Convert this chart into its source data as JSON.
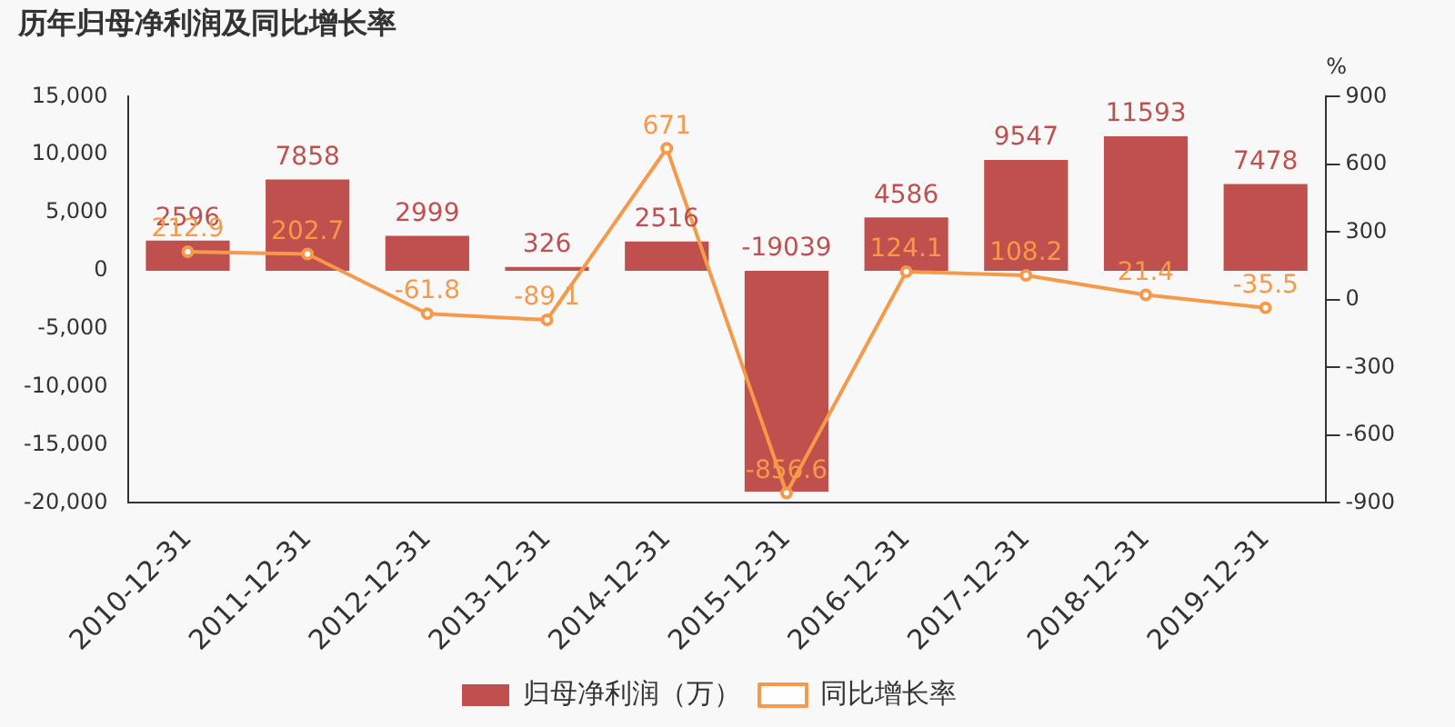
{
  "chart_data": {
    "type": "bar",
    "title": "历年归母净利润及同比增长率",
    "y2label": "%",
    "categories": [
      "2010-12-31",
      "2011-12-31",
      "2012-12-31",
      "2013-12-31",
      "2014-12-31",
      "2015-12-31",
      "2016-12-31",
      "2017-12-31",
      "2018-12-31",
      "2019-12-31"
    ],
    "series": [
      {
        "name": "归母净利润（万）",
        "color": "#c0504d",
        "values": [
          2596,
          7858,
          2999,
          326,
          2516,
          -19039,
          4586,
          9547,
          11593,
          7478
        ]
      },
      {
        "name": "同比增长率",
        "type": "line",
        "axis": "y2",
        "color": "#f5994a",
        "values": [
          212.9,
          202.7,
          -61.8,
          -89.1,
          671,
          -856.6,
          124.1,
          108.2,
          21.4,
          -35.5
        ]
      }
    ],
    "ylim": [
      -20000,
      15000
    ],
    "yticks": [
      {
        "value": -20000,
        "label": "-20,000"
      },
      {
        "value": -15000,
        "label": "-15,000"
      },
      {
        "value": -10000,
        "label": "-10,000"
      },
      {
        "value": -5000,
        "label": "-5,000"
      },
      0,
      {
        "value": 5000,
        "label": "5,000"
      },
      {
        "value": 10000,
        "label": "10,000"
      },
      {
        "value": 15000,
        "label": "15,000"
      }
    ],
    "y2lim": [
      -900,
      900
    ],
    "y2ticks": [
      -900,
      -600,
      -300,
      0,
      300,
      600,
      900
    ],
    "data_labels": true,
    "legend": "bottom",
    "marker": "circle",
    "grid": false
  }
}
